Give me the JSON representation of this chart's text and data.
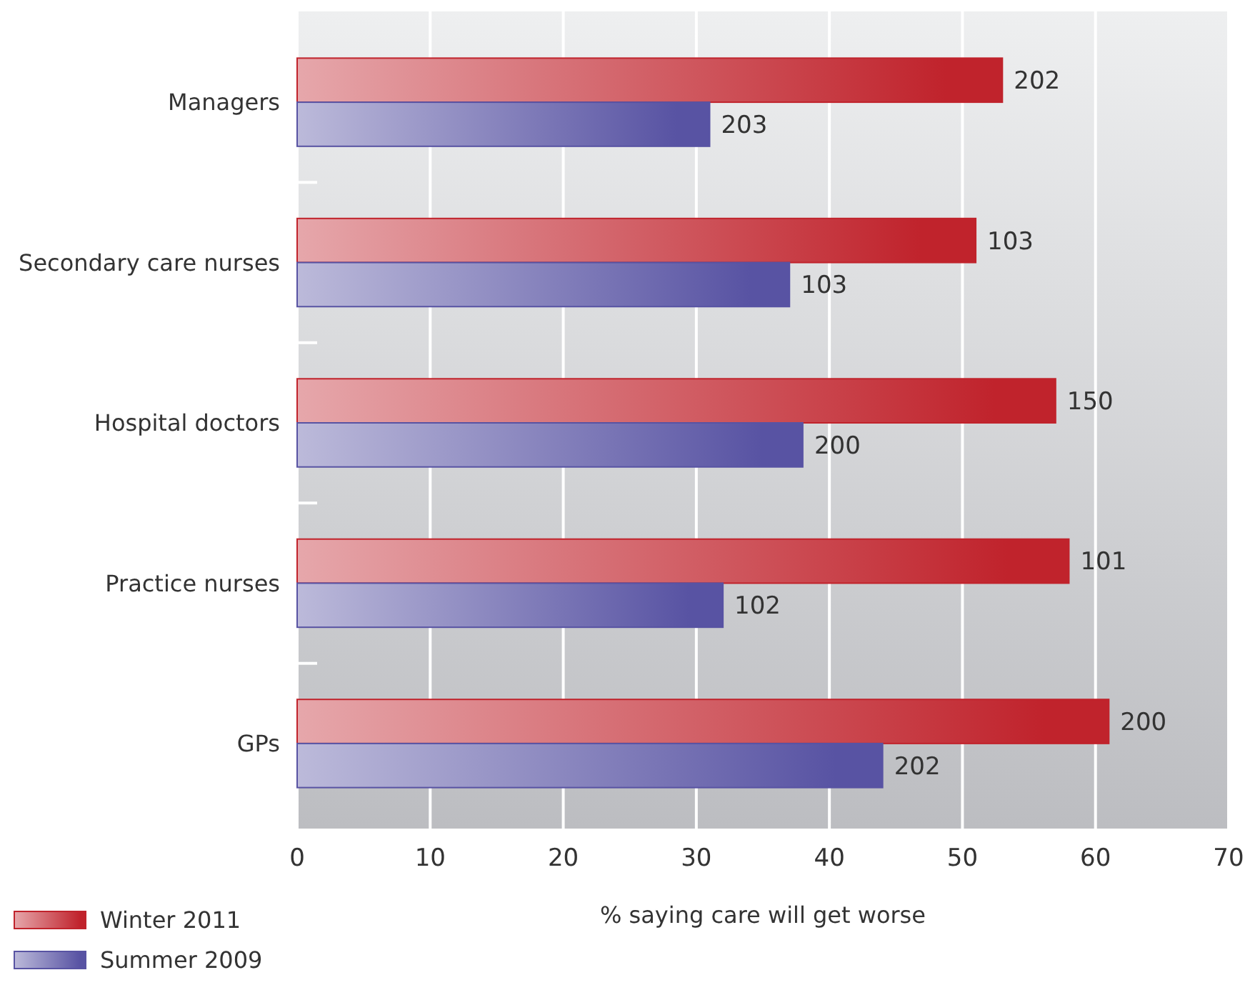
{
  "chart_data": {
    "type": "bar",
    "orientation": "horizontal",
    "xlabel": "% saying care will get worse",
    "categories": [
      "Managers",
      "Secondary care nurses",
      "Hospital doctors",
      "Practice nurses",
      "GPs"
    ],
    "series": [
      {
        "name": "Winter 2011",
        "color": "#c0232c",
        "values": [
          53,
          51,
          57,
          58,
          61
        ]
      },
      {
        "name": "Summer 2009",
        "color": "#5853a3",
        "values": [
          31,
          37,
          38,
          32,
          44
        ]
      }
    ],
    "annotations": [
      {
        "text": "202",
        "x": 53,
        "y": "Managers"
      },
      {
        "text": "203",
        "x": 31,
        "y": "Managers"
      },
      {
        "text": "103",
        "x": 51,
        "y": "Secondary care nurses"
      },
      {
        "text": "103",
        "x": 37,
        "y": "Secondary care nurses"
      },
      {
        "text": "150",
        "x": 57,
        "y": "Hospital doctors"
      },
      {
        "text": "200",
        "x": 38,
        "y": "Hospital doctors"
      },
      {
        "text": "101",
        "x": 58,
        "y": "Practice nurses"
      },
      {
        "text": "102",
        "x": 32,
        "y": "Practice nurses"
      },
      {
        "text": "200",
        "x": 61,
        "y": "GPs"
      },
      {
        "text": "202",
        "x": 44,
        "y": "GPs"
      }
    ],
    "xlim": [
      0,
      70
    ],
    "xticks": [
      0,
      10,
      20,
      30,
      40,
      50,
      60,
      70
    ],
    "grid": "x",
    "legend": "bottom left"
  }
}
